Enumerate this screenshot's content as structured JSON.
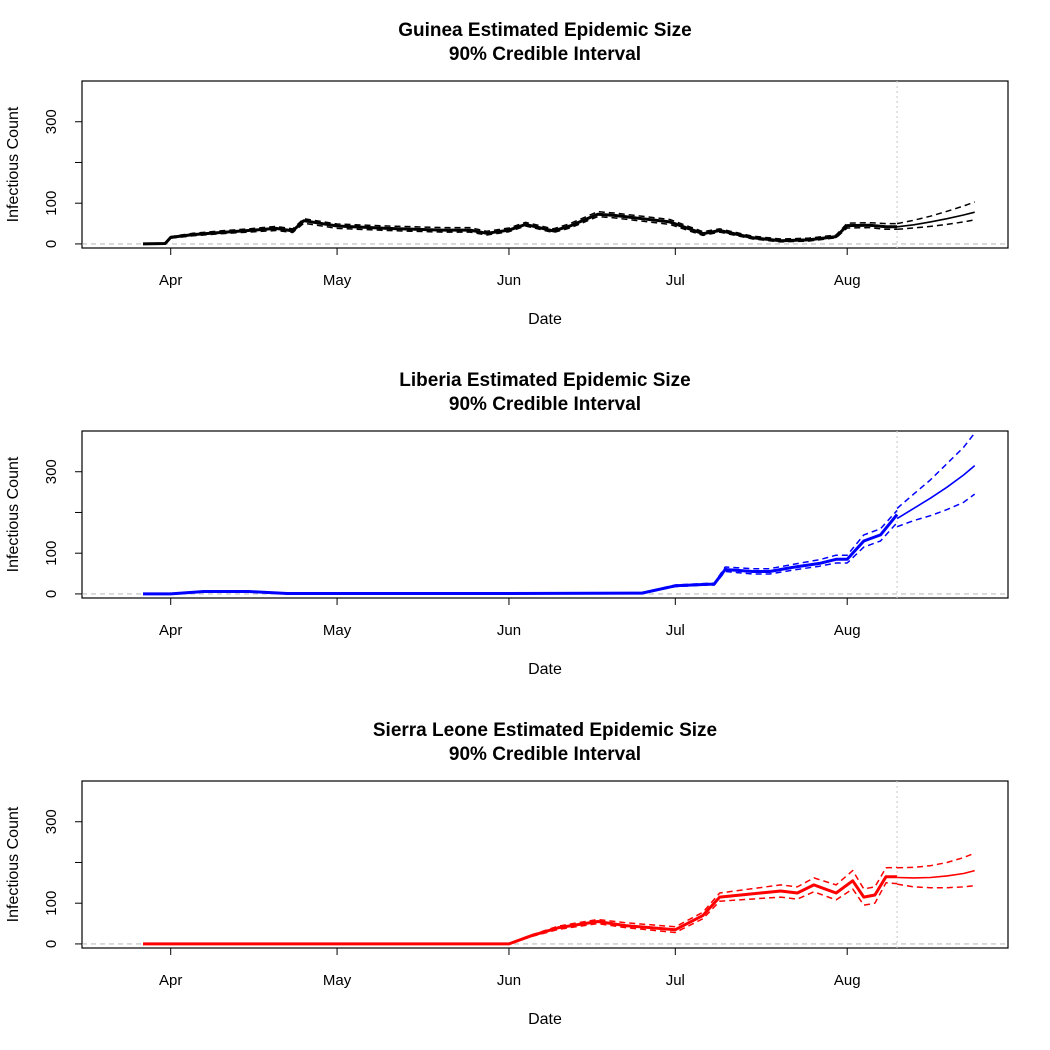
{
  "chart_data": [
    {
      "type": "line",
      "title": "Guinea Estimated Epidemic Size",
      "subtitle": "90% Credible Interval",
      "xlabel": "Date",
      "ylabel": "Infectious Count",
      "xlim": [
        "2014-03-16",
        "2014-08-30"
      ],
      "ylim": [
        -10,
        400
      ],
      "x_tick_dates": [
        "2014-04-01",
        "2014-05-01",
        "2014-06-01",
        "2014-07-01",
        "2014-08-01"
      ],
      "x_tick_labels": [
        "Apr",
        "May",
        "Jun",
        "Jul",
        "Aug"
      ],
      "y_ticks": [
        0,
        100,
        200,
        300
      ],
      "y_tick_labels": [
        "0",
        "100",
        "",
        "300"
      ],
      "forecast_start": "2014-08-10",
      "grid": false,
      "color": "#000000",
      "series": [
        {
          "role": "estimate",
          "x": [
            "2014-03-27",
            "2014-03-31",
            "2014-04-01",
            "2014-04-05",
            "2014-04-10",
            "2014-04-15",
            "2014-04-20",
            "2014-04-23",
            "2014-04-25",
            "2014-05-01",
            "2014-05-10",
            "2014-05-20",
            "2014-05-25",
            "2014-05-28",
            "2014-06-01",
            "2014-06-04",
            "2014-06-09",
            "2014-06-12",
            "2014-06-17",
            "2014-06-20",
            "2014-06-30",
            "2014-07-06",
            "2014-07-09",
            "2014-07-15",
            "2014-07-20",
            "2014-07-25",
            "2014-07-30",
            "2014-08-01",
            "2014-08-05",
            "2014-08-08",
            "2014-08-10"
          ],
          "y": [
            0,
            1,
            16,
            23,
            28,
            33,
            38,
            32,
            57,
            44,
            38,
            34,
            34,
            26,
            34,
            48,
            32,
            44,
            73,
            70,
            54,
            25,
            33,
            15,
            8,
            10,
            18,
            45,
            46,
            42,
            42
          ]
        },
        {
          "role": "upper",
          "x": [
            "2014-03-27",
            "2014-03-31",
            "2014-04-01",
            "2014-04-05",
            "2014-04-10",
            "2014-04-15",
            "2014-04-20",
            "2014-04-23",
            "2014-04-25",
            "2014-05-01",
            "2014-05-10",
            "2014-05-20",
            "2014-05-25",
            "2014-05-28",
            "2014-06-01",
            "2014-06-04",
            "2014-06-09",
            "2014-06-12",
            "2014-06-17",
            "2014-06-20",
            "2014-06-30",
            "2014-07-06",
            "2014-07-09",
            "2014-07-15",
            "2014-07-20",
            "2014-07-25",
            "2014-07-30",
            "2014-08-01",
            "2014-08-05",
            "2014-08-08",
            "2014-08-10"
          ],
          "y": [
            0,
            1,
            18,
            26,
            32,
            37,
            43,
            37,
            62,
            49,
            44,
            40,
            40,
            31,
            39,
            53,
            37,
            50,
            79,
            76,
            60,
            30,
            37,
            19,
            12,
            14,
            22,
            51,
            52,
            50,
            50
          ]
        },
        {
          "role": "lower",
          "x": [
            "2014-03-27",
            "2014-03-31",
            "2014-04-01",
            "2014-04-05",
            "2014-04-10",
            "2014-04-15",
            "2014-04-20",
            "2014-04-23",
            "2014-04-25",
            "2014-05-01",
            "2014-05-10",
            "2014-05-20",
            "2014-05-25",
            "2014-05-28",
            "2014-06-01",
            "2014-06-04",
            "2014-06-09",
            "2014-06-12",
            "2014-06-17",
            "2014-06-20",
            "2014-06-30",
            "2014-07-06",
            "2014-07-09",
            "2014-07-15",
            "2014-07-20",
            "2014-07-25",
            "2014-07-30",
            "2014-08-01",
            "2014-08-05",
            "2014-08-08",
            "2014-08-10"
          ],
          "y": [
            0,
            1,
            14,
            20,
            25,
            29,
            33,
            28,
            51,
            38,
            33,
            29,
            29,
            22,
            30,
            44,
            28,
            39,
            67,
            64,
            48,
            21,
            29,
            12,
            5,
            7,
            15,
            39,
            40,
            36,
            36
          ]
        },
        {
          "role": "forecast",
          "x": [
            "2014-08-10",
            "2014-08-13",
            "2014-08-16",
            "2014-08-19",
            "2014-08-22",
            "2014-08-24"
          ],
          "y": [
            42,
            47,
            54,
            62,
            71,
            78
          ]
        },
        {
          "role": "forecast-upper",
          "x": [
            "2014-08-10",
            "2014-08-13",
            "2014-08-16",
            "2014-08-19",
            "2014-08-22",
            "2014-08-24"
          ],
          "y": [
            50,
            58,
            68,
            80,
            93,
            103
          ]
        },
        {
          "role": "forecast-lower",
          "x": [
            "2014-08-10",
            "2014-08-13",
            "2014-08-16",
            "2014-08-19",
            "2014-08-22",
            "2014-08-24"
          ],
          "y": [
            36,
            39,
            43,
            48,
            54,
            59
          ]
        }
      ]
    },
    {
      "type": "line",
      "title": "Liberia Estimated Epidemic Size",
      "subtitle": "90% Credible Interval",
      "xlabel": "Date",
      "ylabel": "Infectious Count",
      "xlim": [
        "2014-03-16",
        "2014-08-30"
      ],
      "ylim": [
        -10,
        400
      ],
      "x_tick_dates": [
        "2014-04-01",
        "2014-05-01",
        "2014-06-01",
        "2014-07-01",
        "2014-08-01"
      ],
      "x_tick_labels": [
        "Apr",
        "May",
        "Jun",
        "Jul",
        "Aug"
      ],
      "y_ticks": [
        0,
        100,
        200,
        300
      ],
      "y_tick_labels": [
        "0",
        "100",
        "",
        "300"
      ],
      "forecast_start": "2014-08-10",
      "grid": false,
      "color": "#0000ff",
      "series": [
        {
          "role": "estimate",
          "x": [
            "2014-03-27",
            "2014-04-01",
            "2014-04-07",
            "2014-04-15",
            "2014-04-22",
            "2014-05-01",
            "2014-05-20",
            "2014-06-01",
            "2014-06-25",
            "2014-07-01",
            "2014-07-07",
            "2014-07-08",
            "2014-07-10",
            "2014-07-15",
            "2014-07-18",
            "2014-07-22",
            "2014-07-27",
            "2014-07-30",
            "2014-08-01",
            "2014-08-04",
            "2014-08-07",
            "2014-08-10"
          ],
          "y": [
            0,
            0,
            6,
            6,
            1,
            1,
            1,
            1,
            2,
            20,
            24,
            24,
            60,
            55,
            55,
            65,
            75,
            85,
            85,
            130,
            145,
            195
          ]
        },
        {
          "role": "upper",
          "x": [
            "2014-03-27",
            "2014-04-01",
            "2014-04-07",
            "2014-04-15",
            "2014-04-22",
            "2014-05-01",
            "2014-05-20",
            "2014-06-01",
            "2014-06-25",
            "2014-07-01",
            "2014-07-07",
            "2014-07-08",
            "2014-07-10",
            "2014-07-15",
            "2014-07-18",
            "2014-07-22",
            "2014-07-27",
            "2014-07-30",
            "2014-08-01",
            "2014-08-04",
            "2014-08-07",
            "2014-08-10"
          ],
          "y": [
            1,
            1,
            7,
            7,
            2,
            2,
            2,
            2,
            3,
            22,
            26,
            26,
            66,
            62,
            62,
            72,
            84,
            95,
            95,
            145,
            160,
            205
          ]
        },
        {
          "role": "lower",
          "x": [
            "2014-03-27",
            "2014-04-01",
            "2014-04-07",
            "2014-04-15",
            "2014-04-22",
            "2014-05-01",
            "2014-05-20",
            "2014-06-01",
            "2014-06-25",
            "2014-07-01",
            "2014-07-07",
            "2014-07-08",
            "2014-07-10",
            "2014-07-15",
            "2014-07-18",
            "2014-07-22",
            "2014-07-27",
            "2014-07-30",
            "2014-08-01",
            "2014-08-04",
            "2014-08-07",
            "2014-08-10"
          ],
          "y": [
            0,
            0,
            5,
            5,
            0,
            0,
            0,
            0,
            1,
            18,
            22,
            22,
            55,
            49,
            49,
            58,
            68,
            76,
            76,
            115,
            130,
            175
          ]
        },
        {
          "role": "forecast",
          "x": [
            "2014-08-10",
            "2014-08-13",
            "2014-08-16",
            "2014-08-19",
            "2014-08-22",
            "2014-08-24"
          ],
          "y": [
            185,
            210,
            235,
            262,
            292,
            315
          ]
        },
        {
          "role": "forecast-upper",
          "x": [
            "2014-08-10",
            "2014-08-13",
            "2014-08-16",
            "2014-08-19",
            "2014-08-22",
            "2014-08-24"
          ],
          "y": [
            210,
            245,
            280,
            320,
            360,
            395
          ]
        },
        {
          "role": "forecast-lower",
          "x": [
            "2014-08-10",
            "2014-08-13",
            "2014-08-16",
            "2014-08-19",
            "2014-08-22",
            "2014-08-24"
          ],
          "y": [
            165,
            180,
            192,
            207,
            225,
            245
          ]
        }
      ]
    },
    {
      "type": "line",
      "title": "Sierra Leone Estimated Epidemic Size",
      "subtitle": "90% Credible Interval",
      "xlabel": "Date",
      "ylabel": "Infectious Count",
      "xlim": [
        "2014-03-16",
        "2014-08-30"
      ],
      "ylim": [
        -10,
        400
      ],
      "x_tick_dates": [
        "2014-04-01",
        "2014-05-01",
        "2014-06-01",
        "2014-07-01",
        "2014-08-01"
      ],
      "x_tick_labels": [
        "Apr",
        "May",
        "Jun",
        "Jul",
        "Aug"
      ],
      "y_ticks": [
        0,
        100,
        200,
        300
      ],
      "y_tick_labels": [
        "0",
        "100",
        "",
        "300"
      ],
      "forecast_start": "2014-08-10",
      "grid": false,
      "color": "#ff0000",
      "series": [
        {
          "role": "estimate",
          "x": [
            "2014-03-27",
            "2014-04-15",
            "2014-05-15",
            "2014-06-01",
            "2014-06-05",
            "2014-06-10",
            "2014-06-17",
            "2014-06-22",
            "2014-07-01",
            "2014-07-06",
            "2014-07-09",
            "2014-07-20",
            "2014-07-23",
            "2014-07-26",
            "2014-07-30",
            "2014-08-02",
            "2014-08-04",
            "2014-08-06",
            "2014-08-08",
            "2014-08-10"
          ],
          "y": [
            0,
            0,
            0,
            0,
            20,
            40,
            55,
            45,
            35,
            70,
            115,
            130,
            125,
            145,
            125,
            155,
            115,
            120,
            165,
            165
          ]
        },
        {
          "role": "upper",
          "x": [
            "2014-03-27",
            "2014-04-15",
            "2014-05-15",
            "2014-06-01",
            "2014-06-05",
            "2014-06-10",
            "2014-06-17",
            "2014-06-22",
            "2014-07-01",
            "2014-07-06",
            "2014-07-09",
            "2014-07-20",
            "2014-07-23",
            "2014-07-26",
            "2014-07-30",
            "2014-08-02",
            "2014-08-04",
            "2014-08-06",
            "2014-08-08",
            "2014-08-10"
          ],
          "y": [
            1,
            1,
            1,
            1,
            22,
            44,
            60,
            52,
            42,
            78,
            125,
            145,
            140,
            162,
            145,
            180,
            135,
            140,
            187,
            188
          ]
        },
        {
          "role": "lower",
          "x": [
            "2014-03-27",
            "2014-04-15",
            "2014-05-15",
            "2014-06-01",
            "2014-06-05",
            "2014-06-10",
            "2014-06-17",
            "2014-06-22",
            "2014-07-01",
            "2014-07-06",
            "2014-07-09",
            "2014-07-20",
            "2014-07-23",
            "2014-07-26",
            "2014-07-30",
            "2014-08-02",
            "2014-08-04",
            "2014-08-06",
            "2014-08-08",
            "2014-08-10"
          ],
          "y": [
            0,
            0,
            0,
            0,
            18,
            36,
            50,
            40,
            28,
            62,
            105,
            115,
            110,
            128,
            108,
            135,
            95,
            100,
            150,
            148
          ]
        },
        {
          "role": "forecast",
          "x": [
            "2014-08-10",
            "2014-08-13",
            "2014-08-16",
            "2014-08-19",
            "2014-08-22",
            "2014-08-24"
          ],
          "y": [
            163,
            162,
            163,
            167,
            173,
            180
          ]
        },
        {
          "role": "forecast-upper",
          "x": [
            "2014-08-10",
            "2014-08-13",
            "2014-08-16",
            "2014-08-19",
            "2014-08-22",
            "2014-08-24"
          ],
          "y": [
            187,
            188,
            192,
            200,
            212,
            223
          ]
        },
        {
          "role": "forecast-lower",
          "x": [
            "2014-08-10",
            "2014-08-13",
            "2014-08-16",
            "2014-08-19",
            "2014-08-22",
            "2014-08-24"
          ],
          "y": [
            147,
            140,
            138,
            138,
            140,
            143
          ]
        }
      ]
    }
  ]
}
